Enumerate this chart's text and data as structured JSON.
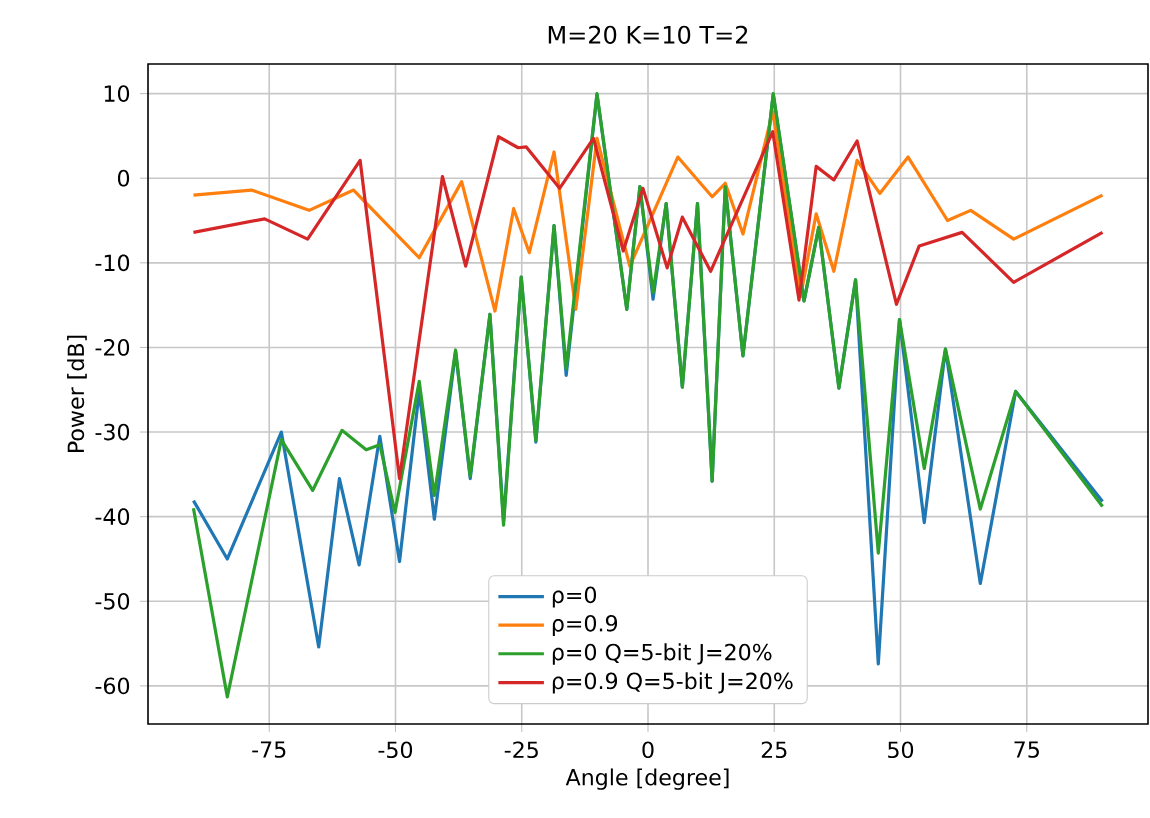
{
  "chart_data": {
    "type": "line",
    "title": "M=20 K=10 T=2",
    "xlabel": "Angle [degree]",
    "ylabel": "Power [dB]",
    "xlim": [
      -99,
      99
    ],
    "ylim": [
      -64.5,
      13.5
    ],
    "xticks": [
      -75,
      -50,
      -25,
      0,
      25,
      50,
      75
    ],
    "yticks": [
      -60,
      -50,
      -40,
      -30,
      -20,
      -10,
      0,
      10
    ],
    "grid": true,
    "legend": "bottom",
    "line_style": "solid",
    "marker": "none",
    "series": [
      {
        "name": "ρ=0",
        "color": "#1f77b4",
        "x": [
          -90,
          -83.3,
          -72.6,
          -65.2,
          -61.1,
          -57.2,
          -53.1,
          -49.2,
          -45.3,
          -42.3,
          -38.1,
          -35.2,
          -31.3,
          -28.6,
          -25.1,
          -22.2,
          -18.6,
          -16.2,
          -10.1,
          -4.2,
          -1.6,
          1,
          3.6,
          6.8,
          9.8,
          12.7,
          15.3,
          18.8,
          24.8,
          30.9,
          33.8,
          37.8,
          41.1,
          45.6,
          49.8,
          54.7,
          58.9,
          65.8,
          72.8,
          90
        ],
        "values": [
          -38.1,
          -45,
          -30,
          -55.4,
          -35.5,
          -45.7,
          -30.5,
          -45.3,
          -25.2,
          -40.3,
          -20.5,
          -35.5,
          -16.1,
          -40.5,
          -11.7,
          -31.2,
          -5.6,
          -23.3,
          9.9,
          -15.5,
          -1,
          -14.3,
          -3,
          -24.7,
          -3,
          -35.8,
          -1,
          -21,
          9.9,
          -14.5,
          -5.8,
          -24.8,
          -12,
          -57.4,
          -16.7,
          -40.7,
          -20.2,
          -47.9,
          -25.2,
          -38.2
        ]
      },
      {
        "name": "ρ=0.9",
        "color": "#ff7f0e",
        "x": [
          -90,
          -78.5,
          -67.1,
          -58.3,
          -45.3,
          -36.9,
          -30.3,
          -26.6,
          -23.5,
          -18.6,
          -14.3,
          -10.1,
          -3.6,
          5.9,
          12.7,
          15.3,
          18.8,
          24.7,
          30.2,
          33.3,
          36.8,
          41.4,
          45.9,
          51.5,
          59.3,
          63.9,
          72.4,
          90
        ],
        "values": [
          -2,
          -1.4,
          -3.8,
          -1.4,
          -9.4,
          -0.4,
          -15.7,
          -3.6,
          -8.8,
          3.1,
          -15.5,
          4.7,
          -10.4,
          2.5,
          -2.2,
          -0.6,
          -6.6,
          7.9,
          -14,
          -4.2,
          -11,
          2.1,
          -1.8,
          2.5,
          -5,
          -3.8,
          -7.2,
          -2
        ]
      },
      {
        "name": "ρ=0 Q=5-bit J=20%",
        "color": "#2ca02c",
        "x": [
          -90,
          -83.3,
          -72.6,
          -66.4,
          -60.6,
          -55.8,
          -53.1,
          -50.1,
          -45.3,
          -42.3,
          -38.1,
          -35.2,
          -31.3,
          -28.6,
          -25.1,
          -22.2,
          -18.6,
          -16.2,
          -10.1,
          -4.2,
          -1.6,
          1,
          3.6,
          6.8,
          9.8,
          12.7,
          15.3,
          18.8,
          24.8,
          30.9,
          33.8,
          37.8,
          41.1,
          45.6,
          49.8,
          54.7,
          58.9,
          65.8,
          72.8,
          90
        ],
        "values": [
          -39,
          -61.3,
          -30.9,
          -36.9,
          -29.8,
          -32.1,
          -31.5,
          -39.5,
          -24,
          -37.5,
          -20.3,
          -35.2,
          -16.1,
          -41,
          -11.7,
          -31,
          -5.6,
          -22.5,
          10,
          -15.5,
          -1,
          -13.5,
          -3,
          -24.7,
          -3,
          -35.8,
          -1,
          -21,
          10,
          -14.5,
          -5.8,
          -24.8,
          -12,
          -44.3,
          -16.7,
          -34.3,
          -20.2,
          -39.1,
          -25.2,
          -38.8
        ]
      },
      {
        "name": "ρ=0.9 Q=5-bit J=20%",
        "color": "#d62728",
        "x": [
          -90,
          -75.9,
          -67.4,
          -57,
          -49.2,
          -40.7,
          -36.1,
          -29.6,
          -25.7,
          -24.1,
          -17.5,
          -10.8,
          -4.9,
          -1,
          3.8,
          6.8,
          12.4,
          24.7,
          29.9,
          33.3,
          36.8,
          41.4,
          49.2,
          53.7,
          62.2,
          72.4,
          90
        ],
        "values": [
          -6.4,
          -4.8,
          -7.2,
          2.1,
          -35.5,
          0.2,
          -10.4,
          4.9,
          3.6,
          3.7,
          -1.2,
          4.7,
          -8.6,
          -1.2,
          -10.6,
          -4.6,
          -11,
          5.5,
          -14.4,
          1.4,
          -0.2,
          4.4,
          -14.9,
          -8,
          -6.4,
          -12.3,
          -6.4
        ]
      }
    ]
  }
}
